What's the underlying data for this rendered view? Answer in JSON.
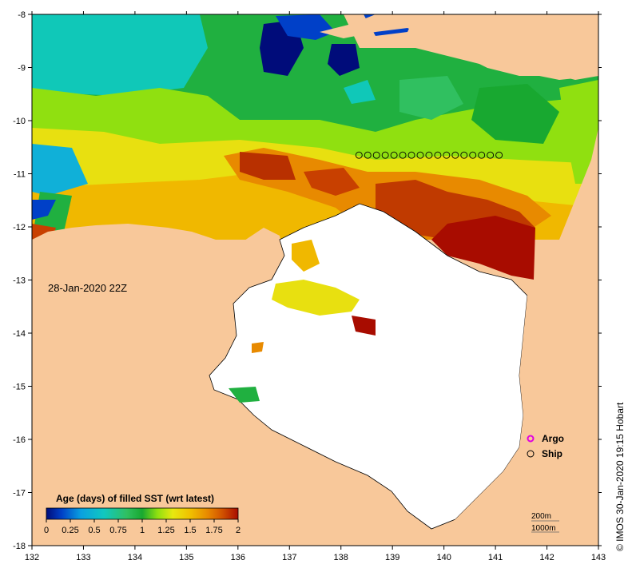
{
  "date_label": "28-Jan-2020 22Z",
  "credit": "© IMOS 30-Jan-2020 19:15 Hobart",
  "legend": {
    "title": "Age (days) of filled SST (wrt latest)",
    "ticks": [
      "0",
      "0.25",
      "0.5",
      "0.75",
      "1",
      "1.25",
      "1.5",
      "1.75",
      "2"
    ],
    "colors": [
      "#000c7a",
      "#0040c8",
      "#0aa0e0",
      "#10c8c0",
      "#30c060",
      "#18a830",
      "#90e010",
      "#e8e810",
      "#f0c000",
      "#e88a00",
      "#d05000",
      "#a80c00"
    ]
  },
  "symbols": {
    "argo_label": "Argo",
    "argo_color": "#e000e0",
    "ship_label": "Ship"
  },
  "depth_labels": [
    "200m",
    "1000m"
  ],
  "axes": {
    "x_ticks": [
      "132",
      "133",
      "134",
      "135",
      "136",
      "137",
      "138",
      "139",
      "140",
      "141",
      "142",
      "143"
    ],
    "y_ticks": [
      "-8",
      "-9",
      "-10",
      "-11",
      "-12",
      "-13",
      "-14",
      "-15",
      "-16",
      "-17",
      "-18"
    ],
    "lon_range": [
      132,
      143
    ],
    "lat_range": [
      -18,
      -8
    ]
  },
  "ship_track": {
    "lat": -10.65,
    "lon": [
      138.35,
      138.52,
      138.69,
      138.86,
      139.03,
      139.2,
      139.37,
      139.54,
      139.71,
      139.88,
      140.05,
      140.22,
      140.39,
      140.56,
      140.73,
      140.9,
      141.07
    ]
  },
  "colors": {
    "land": "#f8c89a",
    "no_data": "#ffffff"
  }
}
